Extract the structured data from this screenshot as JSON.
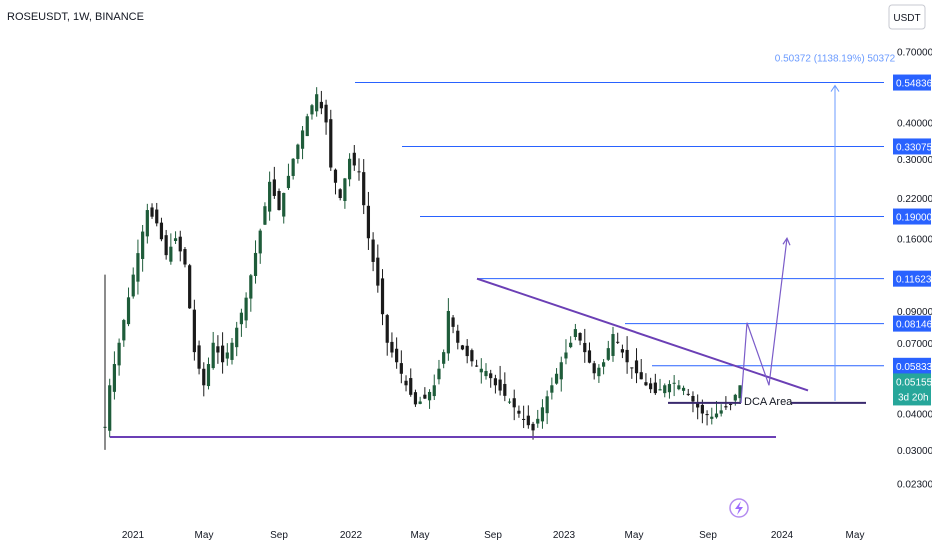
{
  "header": {
    "title": "ROSEUSDT, 1W, BINANCE"
  },
  "currency_button": {
    "label": "USDT"
  },
  "colors": {
    "up": "#1e5c3a",
    "down": "#1a1a1a",
    "level_line": "#2962ff",
    "trend_line": "#6b3fb5",
    "badge_price": "#2962ff",
    "badge_last": "#26a69a",
    "measure": "#6b9bff"
  },
  "chart_data": {
    "type": "candlestick",
    "x_axis": {
      "tick_labels": [
        "2021",
        "May",
        "Sep",
        "2022",
        "May",
        "Sep",
        "2023",
        "May",
        "Sep",
        "2024",
        "May"
      ]
    },
    "y_axis": {
      "scale": "log",
      "range": [
        0.0205,
        0.78
      ],
      "tick_labels": [
        "0.70000",
        "0.40000",
        "0.30000",
        "0.22000",
        "0.16000",
        "0.09000",
        "0.07000",
        "0.04000",
        "0.03000",
        "0.02300"
      ],
      "tick_values": [
        0.7,
        0.4,
        0.3,
        0.22,
        0.16,
        0.09,
        0.07,
        0.04,
        0.03,
        0.023
      ]
    },
    "grid": false,
    "levels": [
      {
        "label": "0.54836",
        "value": 0.54836
      },
      {
        "label": "0.33075",
        "value": 0.33075
      },
      {
        "label": "0.19000",
        "value": 0.19
      },
      {
        "label": "0.11623",
        "value": 0.11623
      },
      {
        "label": "0.08146",
        "value": 0.08146
      },
      {
        "label": "0.05833",
        "value": 0.05833
      }
    ],
    "last_price": {
      "label": "0.05155",
      "value": 0.05155,
      "countdown": "3d 20h"
    },
    "support_level": 0.0332,
    "dca_level": 0.0435,
    "annotations": {
      "dca_label": "DCA Area",
      "measure_label": "0.50372 (1138.19%) 50372"
    },
    "candles": []
  }
}
